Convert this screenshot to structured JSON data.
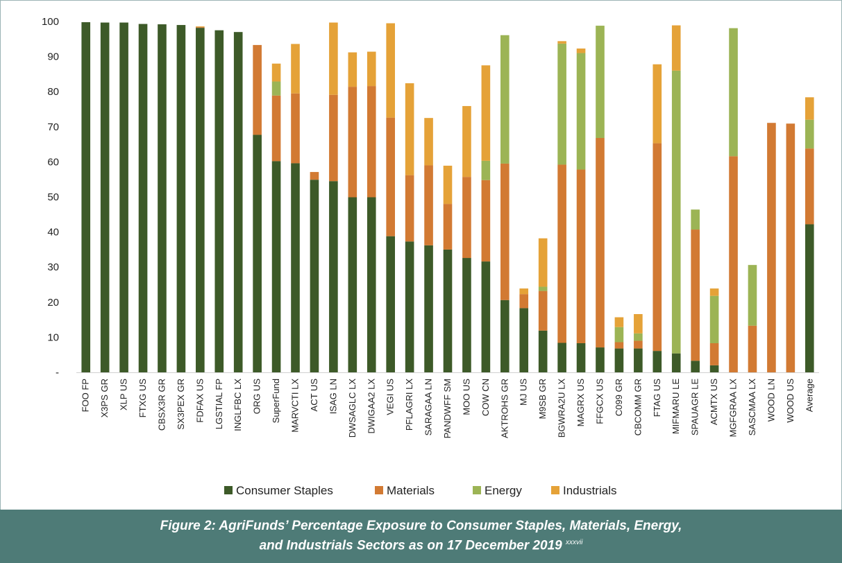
{
  "chart_data": {
    "type": "bar",
    "stacked": true,
    "title": "",
    "xlabel": "",
    "ylabel": "",
    "ylim": [
      0,
      100
    ],
    "yticks": [
      "-",
      "10",
      "20",
      "30",
      "40",
      "50",
      "60",
      "70",
      "80",
      "90",
      "100"
    ],
    "legend_position": "bottom",
    "categories": [
      "FOO FP",
      "X3PS GR",
      "XLP US",
      "FTXG US",
      "CBSX3R GR",
      "SX3PEX GR",
      "FDFAX US",
      "LGSTIAL FP",
      "INGLFBC LX",
      "ORG US",
      "SuperFund",
      "MARVCTI LX",
      "ACT US",
      "ISAG LN",
      "DWSAGLC LX",
      "DWIGAA2 LX",
      "VEGI US",
      "PFLAGRI LX",
      "SARAGAA LN",
      "PANDWFF SM",
      "MOO US",
      "COW CN",
      "AKTROHS GR",
      "MJ US",
      "M9SB GR",
      "BGWRA2U LX",
      "MAGRX US",
      "FFGCX US",
      "C099 GR",
      "CBCOMM GR",
      "FTAG US",
      "MIFMARU LE",
      "SPAUAGR LE",
      "ACMTX US",
      "MGFGRAA LX",
      "SASCMAA LX",
      "WOOD LN",
      "WOOD US",
      "Average"
    ],
    "series": [
      {
        "name": "Consumer Staples",
        "color": "#3d5a28",
        "values": [
          99.8,
          99.7,
          99.7,
          99.3,
          99.2,
          99.0,
          98.2,
          97.5,
          97.0,
          67.7,
          60.2,
          59.6,
          54.9,
          54.5,
          49.9,
          49.9,
          38.8,
          37.3,
          36.2,
          35.0,
          32.6,
          31.6,
          20.6,
          18.3,
          11.9,
          8.4,
          8.3,
          7.1,
          6.8,
          6.8,
          6.1,
          5.4,
          3.3,
          2.0,
          0,
          0,
          0,
          0,
          42.2
        ]
      },
      {
        "name": "Materials",
        "color": "#d27a33",
        "values": [
          0,
          0,
          0,
          0,
          0,
          0,
          0.2,
          0,
          0,
          25.6,
          18.7,
          19.9,
          2.2,
          24.6,
          31.5,
          31.7,
          33.8,
          18.9,
          22.8,
          13.0,
          23.1,
          23.2,
          38.9,
          4.0,
          11.3,
          50.8,
          49.5,
          59.7,
          1.8,
          2.2,
          59.2,
          0,
          37.4,
          6.3,
          61.6,
          13.3,
          71.1,
          70.9,
          21.6
        ]
      },
      {
        "name": "Energy",
        "color": "#9cb455",
        "values": [
          0,
          0,
          0,
          0,
          0,
          0,
          0,
          0,
          0,
          0,
          4.0,
          0,
          0,
          0,
          0,
          0,
          0,
          0,
          0,
          0,
          0,
          5.5,
          36.6,
          0,
          1.2,
          34.5,
          33.2,
          32.0,
          4.3,
          2.1,
          0,
          80.6,
          5.7,
          13.5,
          36.5,
          17.3,
          0,
          0,
          8.2
        ]
      },
      {
        "name": "Industrials",
        "color": "#e5a238",
        "values": [
          0,
          0,
          0,
          0,
          0,
          0,
          0.2,
          0,
          0,
          0,
          5.1,
          14.1,
          0,
          20.6,
          9.8,
          9.8,
          26.9,
          26.2,
          13.5,
          10.9,
          20.2,
          27.2,
          0,
          1.6,
          13.8,
          0.7,
          1.3,
          0,
          2.8,
          5.5,
          22.5,
          12.9,
          0,
          2.1,
          0,
          0,
          0,
          0,
          6.4
        ]
      }
    ]
  },
  "caption": {
    "line1": "Figure 2: AgriFunds’ Percentage Exposure to Consumer Staples, Materials, Energy,",
    "line2": "and Industrials Sectors as on 17 December 2019",
    "footnote": "xxxvii"
  }
}
